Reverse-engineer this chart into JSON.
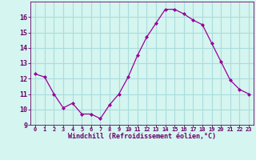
{
  "x": [
    0,
    1,
    2,
    3,
    4,
    5,
    6,
    7,
    8,
    9,
    10,
    11,
    12,
    13,
    14,
    15,
    16,
    17,
    18,
    19,
    20,
    21,
    22,
    23
  ],
  "y": [
    12.3,
    12.1,
    11.0,
    10.1,
    10.4,
    9.7,
    9.7,
    9.4,
    10.3,
    11.0,
    12.1,
    13.5,
    14.7,
    15.6,
    16.5,
    16.5,
    16.2,
    15.8,
    15.5,
    14.3,
    13.1,
    11.9,
    11.3,
    11.0
  ],
  "line_color": "#990099",
  "marker": "D",
  "marker_size": 2,
  "bg_color": "#d5f5f0",
  "grid_color": "#aadddd",
  "xlabel": "Windchill (Refroidissement éolien,°C)",
  "xlabel_color": "#660066",
  "tick_color": "#660066",
  "ylim": [
    9,
    17
  ],
  "xlim": [
    -0.5,
    23.5
  ],
  "yticks": [
    9,
    10,
    11,
    12,
    13,
    14,
    15,
    16
  ],
  "xticks": [
    0,
    1,
    2,
    3,
    4,
    5,
    6,
    7,
    8,
    9,
    10,
    11,
    12,
    13,
    14,
    15,
    16,
    17,
    18,
    19,
    20,
    21,
    22,
    23
  ]
}
